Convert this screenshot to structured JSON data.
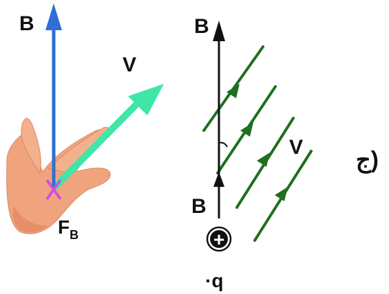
{
  "left_figure": {
    "b_label": "B",
    "v_label": "V",
    "f_label": "F",
    "f_subscript": "B",
    "colors": {
      "b_arrow": "#2f6fd6",
      "v_arrow": "#3fe6a6",
      "force_cross": "#d24fd8",
      "skin": "#f0a47e",
      "skin_shadow": "#e0805c"
    }
  },
  "right_figure": {
    "b_top_label": "B",
    "b_bottom_label": "B",
    "v_label": "V",
    "charge_symbol": "+",
    "charge_label": "·q",
    "colors": {
      "axis": "#111111",
      "field_lines": "#1f6f1f"
    }
  },
  "option_label": "ج)"
}
